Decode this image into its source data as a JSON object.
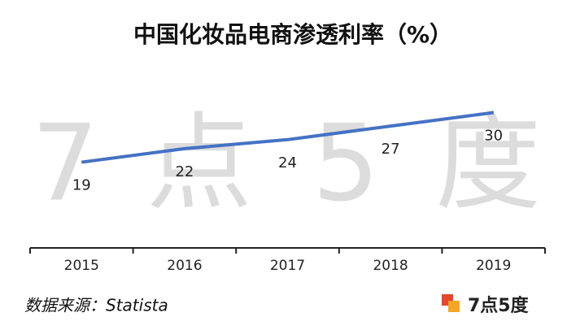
{
  "chart_data": {
    "type": "line",
    "title": "中国化妆品电商渗透利率（%）",
    "categories": [
      "2015",
      "2016",
      "2017",
      "2018",
      "2019"
    ],
    "values": [
      19,
      22,
      24,
      27,
      30
    ],
    "color": "#4472c4",
    "ylim": [
      0,
      40
    ],
    "watermark": [
      "7",
      "点",
      "5",
      "度"
    ],
    "source": "数据来源：Statista",
    "logo": "7点5度"
  }
}
